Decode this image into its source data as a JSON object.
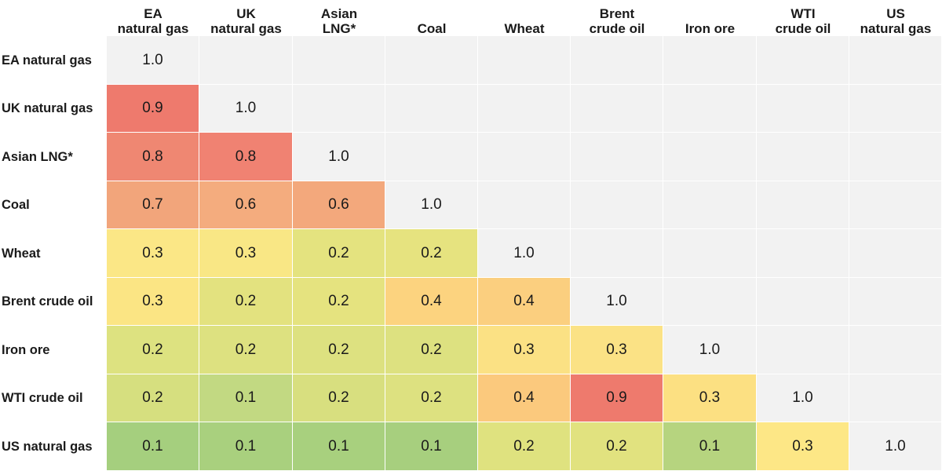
{
  "chart_data": {
    "type": "heatmap",
    "categories": [
      "EA natural gas",
      "UK natural gas",
      "Asian LNG*",
      "Coal",
      "Wheat",
      "Brent crude oil",
      "Iron ore",
      "WTI crude oil",
      "US natural gas"
    ],
    "column_headers": [
      [
        "EA",
        "natural gas"
      ],
      [
        "UK",
        "natural gas"
      ],
      [
        "Asian",
        "LNG*"
      ],
      [
        "Coal"
      ],
      [
        "Wheat"
      ],
      [
        "Brent",
        "crude oil"
      ],
      [
        "Iron ore"
      ],
      [
        "WTI",
        "crude oil"
      ],
      [
        "US",
        "natural gas"
      ]
    ],
    "values": [
      [
        1.0
      ],
      [
        0.9,
        1.0
      ],
      [
        0.8,
        0.8,
        1.0
      ],
      [
        0.7,
        0.6,
        0.6,
        1.0
      ],
      [
        0.3,
        0.3,
        0.2,
        0.2,
        1.0
      ],
      [
        0.3,
        0.2,
        0.2,
        0.4,
        0.4,
        1.0
      ],
      [
        0.2,
        0.2,
        0.2,
        0.2,
        0.3,
        0.3,
        1.0
      ],
      [
        0.2,
        0.1,
        0.2,
        0.2,
        0.4,
        0.9,
        0.3,
        1.0
      ],
      [
        0.1,
        0.1,
        0.1,
        0.1,
        0.2,
        0.2,
        0.1,
        0.3,
        1.0
      ]
    ],
    "cell_colors": [
      [
        "#f2f2f2"
      ],
      [
        "#ee7a6d",
        "#f2f2f2"
      ],
      [
        "#ef8772",
        "#f08272",
        "#f2f2f2"
      ],
      [
        "#f2a57b",
        "#f4ac7e",
        "#f3a87c",
        "#f2f2f2"
      ],
      [
        "#fbe786",
        "#f9e785",
        "#e4e37f",
        "#e6e37f",
        "#f2f2f2"
      ],
      [
        "#fbe584",
        "#e3e27f",
        "#e5e37f",
        "#fcd37f",
        "#fbcf7f",
        "#f2f2f2"
      ],
      [
        "#dde280",
        "#dde180",
        "#dde180",
        "#dde180",
        "#fbe184",
        "#fbe285",
        "#f2f2f2"
      ],
      [
        "#d6df7f",
        "#c2d982",
        "#d8df7f",
        "#dde180",
        "#fbc97d",
        "#ee7a6d",
        "#fce082",
        "#f2f2f2"
      ],
      [
        "#a5cf7e",
        "#a9d07e",
        "#a8d07e",
        "#a7cf7e",
        "#dfe27f",
        "#e1e27f",
        "#b6d47f",
        "#fde786",
        "#f2f2f2"
      ]
    ],
    "empty_color": "#f2f2f2",
    "grid": true,
    "legend": "none"
  }
}
